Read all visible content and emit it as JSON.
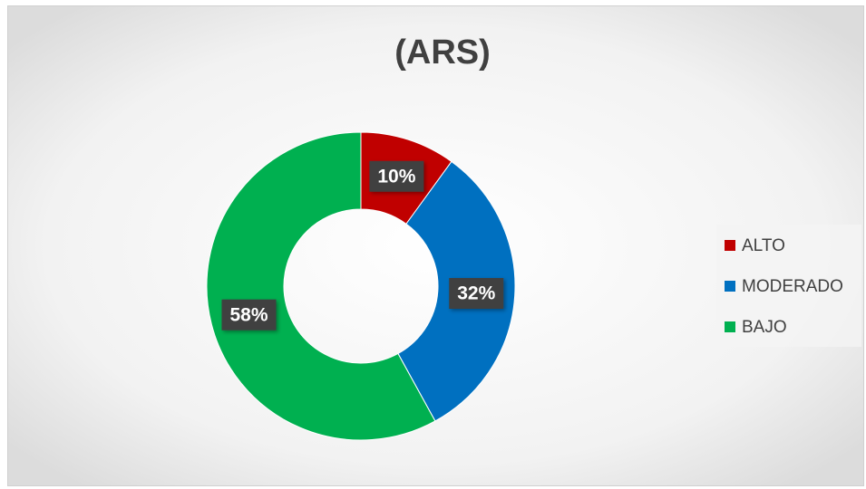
{
  "chart_data": {
    "type": "donut",
    "title": "(ARS)",
    "categories": [
      "ALTO",
      "MODERADO",
      "BAJO"
    ],
    "values": [
      10,
      32,
      58
    ],
    "value_labels": [
      "10%",
      "32%",
      "58%"
    ],
    "colors": [
      "#c00000",
      "#0070c0",
      "#00b050"
    ],
    "legend": "right"
  }
}
